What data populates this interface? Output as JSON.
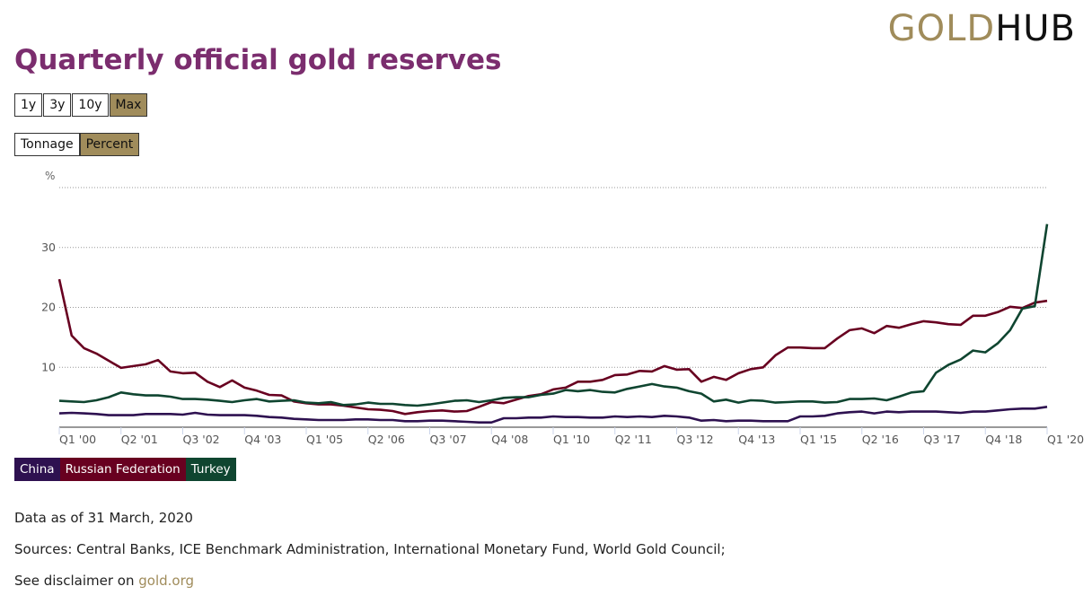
{
  "logo": {
    "part1": "GOLD",
    "part2": "HUB"
  },
  "title": "Quarterly official gold reserves",
  "range_buttons": [
    {
      "label": "1y",
      "active": false
    },
    {
      "label": "3y",
      "active": false
    },
    {
      "label": "10y",
      "active": false
    },
    {
      "label": "Max",
      "active": true
    }
  ],
  "unit_buttons": [
    {
      "label": "Tonnage",
      "active": false
    },
    {
      "label": "Percent",
      "active": true
    }
  ],
  "colors": {
    "accent": "#a08c5b",
    "title": "#7b2d6e",
    "china": "#2e1150",
    "russia": "#680020",
    "turkey": "#0f4530"
  },
  "legend": [
    {
      "label": "China",
      "color": "#2e1150"
    },
    {
      "label": "Russian Federation",
      "color": "#680020"
    },
    {
      "label": "Turkey",
      "color": "#0f4530"
    }
  ],
  "footer": {
    "data_as_of": "Data as of 31 March, 2020",
    "sources": "Sources: Central Banks, ICE Benchmark Administration, International Monetary Fund, World Gold Council;",
    "disclaimer_prefix": "See disclaimer on ",
    "disclaimer_link": "gold.org"
  },
  "chart_data": {
    "type": "line",
    "title": "Quarterly official gold reserves",
    "ylabel": "%",
    "xlabel": "",
    "ylim": [
      0,
      40
    ],
    "yticks": [
      10,
      20,
      30
    ],
    "grid": true,
    "x_start": "Q1 '00",
    "x_end": "Q1 '20",
    "x_tick_labels": [
      "Q1 '00",
      "Q2 '01",
      "Q3 '02",
      "Q4 '03",
      "Q1 '05",
      "Q2 '06",
      "Q3 '07",
      "Q4 '08",
      "Q1 '10",
      "Q2 '11",
      "Q3 '12",
      "Q4 '13",
      "Q1 '15",
      "Q2 '16",
      "Q3 '17",
      "Q4 '18",
      "Q1 '20"
    ],
    "x_tick_interval_quarters": 5,
    "legend_position": "bottom-left",
    "series": [
      {
        "name": "China",
        "color": "#2e1150",
        "values": [
          2.3,
          2.4,
          2.3,
          2.2,
          2.0,
          2.0,
          2.0,
          2.2,
          2.2,
          2.2,
          2.1,
          2.4,
          2.1,
          2.0,
          2.0,
          2.0,
          1.9,
          1.7,
          1.6,
          1.4,
          1.3,
          1.2,
          1.2,
          1.2,
          1.3,
          1.3,
          1.2,
          1.2,
          1.0,
          1.0,
          1.1,
          1.1,
          1.0,
          0.9,
          0.8,
          0.8,
          1.5,
          1.5,
          1.6,
          1.6,
          1.8,
          1.7,
          1.7,
          1.6,
          1.6,
          1.8,
          1.7,
          1.8,
          1.7,
          1.9,
          1.8,
          1.6,
          1.1,
          1.2,
          1.0,
          1.1,
          1.1,
          1.0,
          1.0,
          1.0,
          1.8,
          1.8,
          1.9,
          2.3,
          2.5,
          2.6,
          2.3,
          2.6,
          2.5,
          2.6,
          2.6,
          2.6,
          2.5,
          2.4,
          2.6,
          2.6,
          2.8,
          3.0,
          3.1,
          3.1,
          3.4
        ]
      },
      {
        "name": "Russian Federation",
        "color": "#680020",
        "values": [
          24.7,
          15.3,
          13.2,
          12.3,
          11.1,
          9.9,
          10.2,
          10.5,
          11.2,
          9.3,
          9.0,
          9.1,
          7.6,
          6.7,
          7.8,
          6.6,
          6.1,
          5.4,
          5.3,
          4.3,
          4.0,
          3.8,
          3.8,
          3.6,
          3.3,
          3.0,
          2.9,
          2.7,
          2.2,
          2.5,
          2.7,
          2.8,
          2.6,
          2.7,
          3.4,
          4.2,
          4.0,
          4.6,
          5.2,
          5.5,
          6.3,
          6.6,
          7.6,
          7.6,
          7.9,
          8.7,
          8.8,
          9.4,
          9.3,
          10.2,
          9.6,
          9.7,
          7.6,
          8.4,
          7.9,
          9.0,
          9.7,
          10.0,
          12.0,
          13.3,
          13.3,
          13.2,
          13.2,
          14.8,
          16.2,
          16.5,
          15.7,
          16.9,
          16.6,
          17.2,
          17.7,
          17.5,
          17.2,
          17.1,
          18.6,
          18.6,
          19.2,
          20.1,
          19.9,
          20.8,
          21.1
        ]
      },
      {
        "name": "Turkey",
        "color": "#0f4530",
        "values": [
          4.4,
          4.3,
          4.2,
          4.5,
          5.0,
          5.8,
          5.5,
          5.3,
          5.3,
          5.1,
          4.7,
          4.7,
          4.6,
          4.4,
          4.2,
          4.5,
          4.7,
          4.3,
          4.4,
          4.5,
          4.1,
          4.0,
          4.2,
          3.7,
          3.8,
          4.1,
          3.9,
          3.9,
          3.7,
          3.6,
          3.8,
          4.1,
          4.4,
          4.5,
          4.2,
          4.5,
          4.9,
          5.0,
          5.0,
          5.4,
          5.6,
          6.2,
          6.0,
          6.2,
          5.9,
          5.8,
          6.4,
          6.8,
          7.2,
          6.8,
          6.6,
          6.0,
          5.6,
          4.3,
          4.6,
          4.1,
          4.5,
          4.4,
          4.1,
          4.2,
          4.3,
          4.3,
          4.1,
          4.2,
          4.7,
          4.7,
          4.8,
          4.5,
          5.1,
          5.8,
          6.0,
          9.1,
          10.4,
          11.3,
          12.8,
          12.5,
          14.0,
          16.2,
          19.8,
          20.2,
          33.9
        ]
      }
    ]
  }
}
